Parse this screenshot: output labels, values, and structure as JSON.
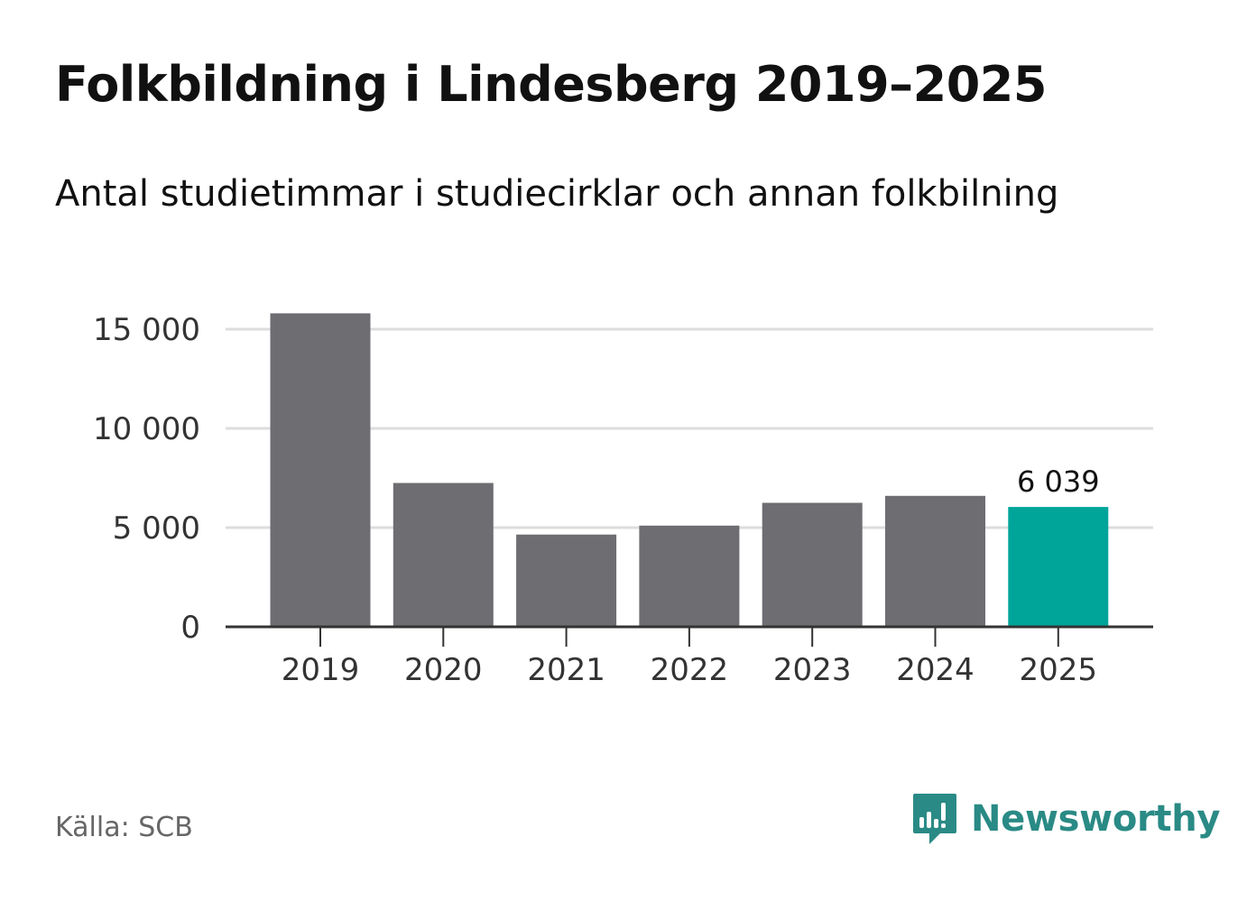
{
  "header": {
    "title": "Folkbildning i Lindesberg 2019–2025",
    "subtitle": "Antal studietimmar i studiecirklar och annan folkbilning"
  },
  "footer": {
    "source": "Källa: SCB",
    "brand": "Newsworthy"
  },
  "colors": {
    "bar": "#6e6d72",
    "highlight": "#00a59a",
    "grid": "#dddddd",
    "axis": "#333333",
    "tick_text": "#333333",
    "brand": "#2a8a85"
  },
  "icons": {
    "brand_logo": "newsworthy-logo-icon"
  },
  "chart_data": {
    "type": "bar",
    "title": "Folkbildning i Lindesberg 2019–2025",
    "subtitle": "Antal studietimmar i studiecirklar och annan folkbilning",
    "xlabel": "",
    "ylabel": "",
    "categories": [
      "2019",
      "2020",
      "2021",
      "2022",
      "2023",
      "2024",
      "2025"
    ],
    "values": [
      15800,
      7250,
      4650,
      5100,
      6250,
      6600,
      6039
    ],
    "highlight_index": 6,
    "data_labels": [
      {
        "index": 6,
        "text": "6 039"
      }
    ],
    "ylim": [
      0,
      16000
    ],
    "yticks": [
      0,
      5000,
      10000,
      15000
    ],
    "ytick_labels": [
      "0",
      "5 000",
      "10 000",
      "15 000"
    ],
    "grid": true,
    "legend": "none"
  }
}
